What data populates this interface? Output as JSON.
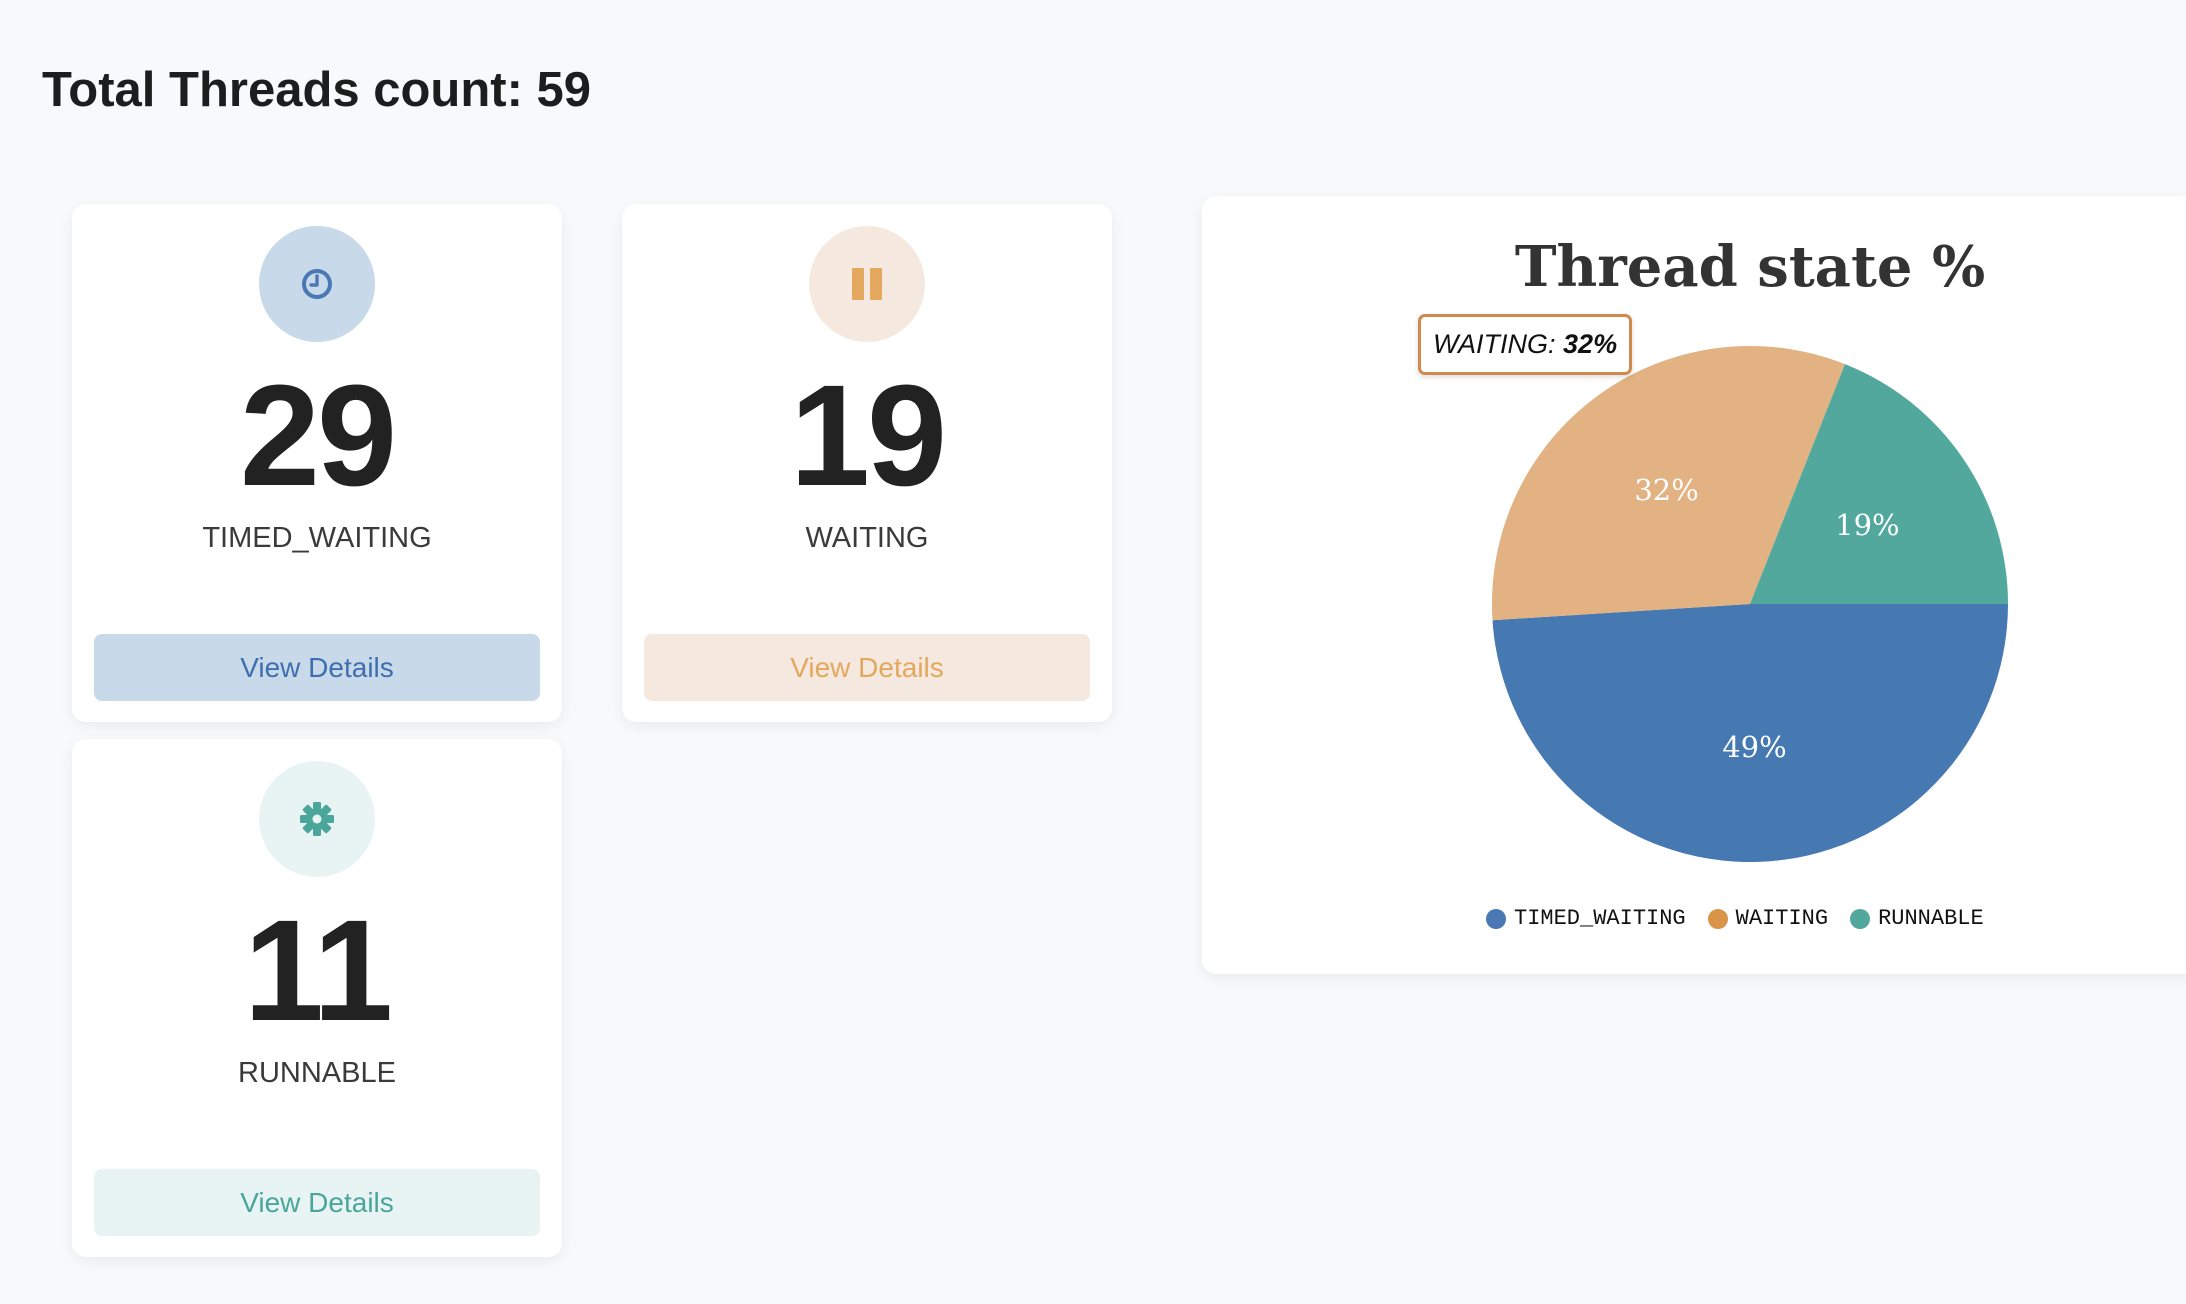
{
  "header": {
    "title": "Total Threads count: 59"
  },
  "cards": [
    {
      "count": "29",
      "label": "TIMED_WAITING",
      "button": "View Details",
      "icon": "clock-icon",
      "icon_color": "#4a78b4",
      "circle_bg": "#c8d9ea",
      "button_bg": "#c8d9ea",
      "button_text": "#3f6fae"
    },
    {
      "count": "19",
      "label": "WAITING",
      "button": "View Details",
      "icon": "pause-icon",
      "icon_color": "#e3a75d",
      "circle_bg": "#f5e9df",
      "button_bg": "#f5e9df",
      "button_text": "#e3a75d"
    },
    {
      "count": "11",
      "label": "RUNNABLE",
      "button": "View Details",
      "icon": "gear-icon",
      "icon_color": "#4aa69a",
      "circle_bg": "#e8f4f3",
      "button_bg": "#e8f4f3",
      "button_text": "#4aa69a"
    }
  ],
  "tooltip": {
    "label": "WAITING:",
    "value": "32%"
  },
  "chart_data": {
    "type": "pie",
    "title": "Thread state  %",
    "slices": [
      {
        "name": "TIMED_WAITING",
        "value": 49,
        "label": "49%",
        "color": "#4678b2",
        "legend_color": "#4a78b4"
      },
      {
        "name": "WAITING",
        "value": 32,
        "label": "32%",
        "color": "#e2b283",
        "legend_color": "#d99448"
      },
      {
        "name": "RUNNABLE",
        "value": 19,
        "label": "19%",
        "color": "#52a89c",
        "legend_color": "#52a89c"
      }
    ],
    "legend_position": "bottom"
  }
}
